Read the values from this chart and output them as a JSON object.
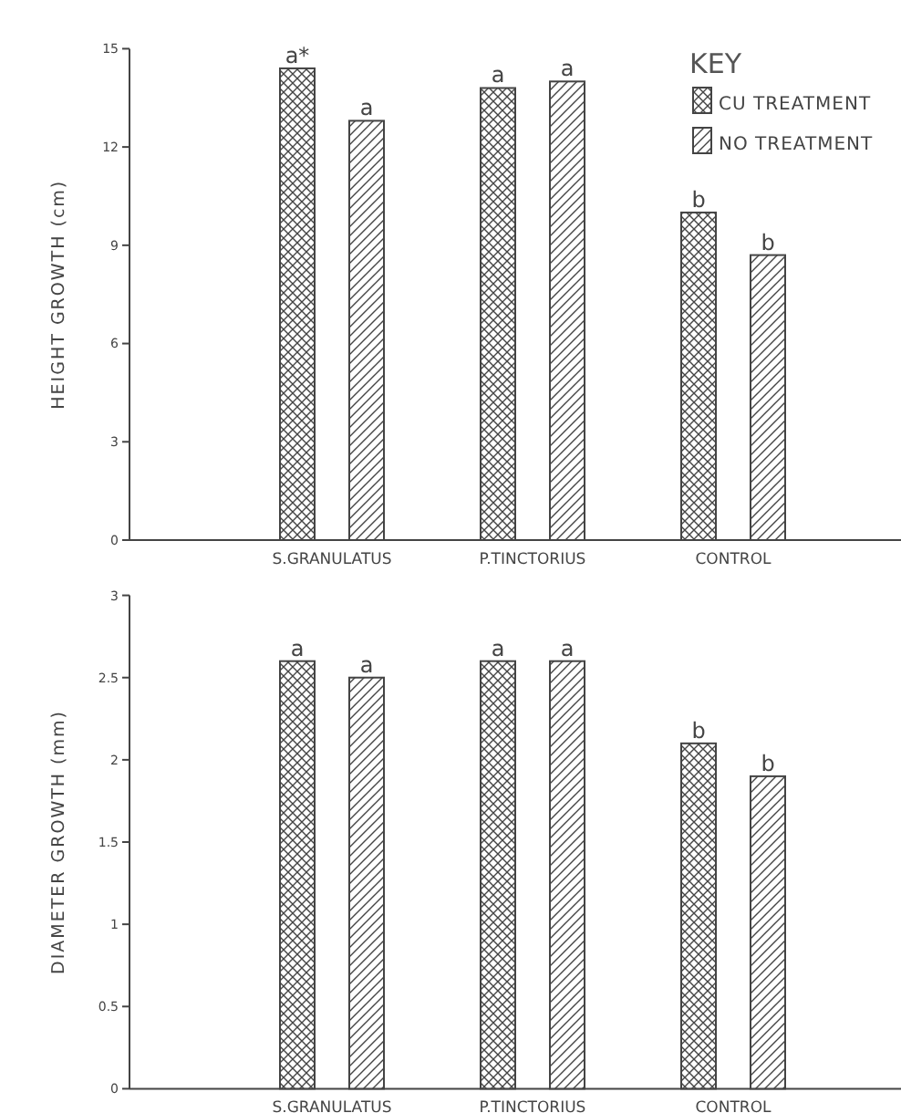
{
  "chart_data": [
    {
      "type": "bar",
      "ylabel": "HEIGHT GROWTH (cm)",
      "legend_title": "KEY",
      "legend": "top right",
      "categories": [
        "S.GRANULATUS",
        "P.TINCTORIUS",
        "CONTROL"
      ],
      "ylim": [
        0,
        15
      ],
      "yticks": [
        0,
        3,
        6,
        9,
        12,
        15
      ],
      "series": [
        {
          "name": "CU TREATMENT",
          "color": "#444444",
          "values": [
            14.4,
            13.8,
            10.0
          ],
          "value_labels": [
            "a*",
            "a",
            "b"
          ]
        },
        {
          "name": "NO TREATMENT",
          "color": "#444444",
          "values": [
            12.8,
            14.0,
            8.7
          ],
          "value_labels": [
            "a",
            "a",
            "b"
          ]
        }
      ]
    },
    {
      "type": "bar",
      "ylabel": "DIAMETER GROWTH (mm)",
      "categories": [
        "S.GRANULATUS",
        "P.TINCTORIUS",
        "CONTROL"
      ],
      "ylim": [
        0,
        3
      ],
      "yticks": [
        0,
        0.5,
        1,
        1.5,
        2,
        2.5,
        3
      ],
      "series": [
        {
          "color": "#444444",
          "values": [
            2.6,
            2.6,
            2.1
          ],
          "value_labels": [
            "a",
            "a",
            "b"
          ]
        },
        {
          "color": "#444444",
          "values": [
            2.5,
            2.6,
            1.9
          ],
          "value_labels": [
            "a",
            "a",
            "b"
          ]
        }
      ]
    }
  ]
}
